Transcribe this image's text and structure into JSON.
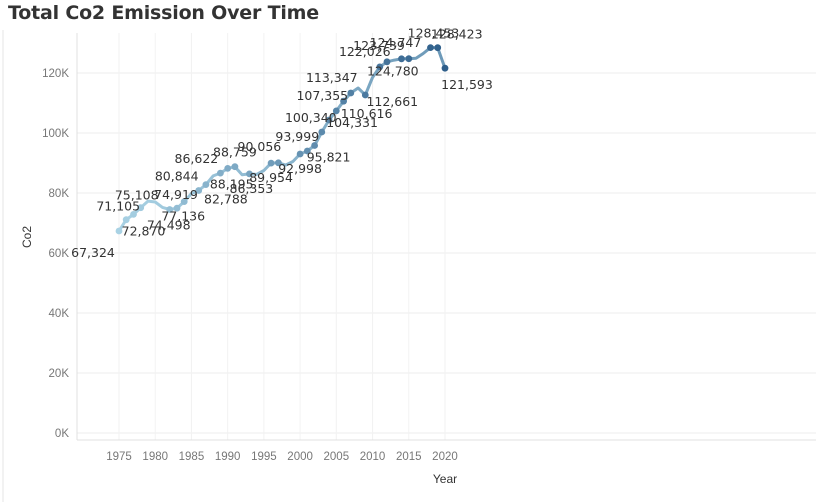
{
  "chart_data": {
    "type": "line",
    "title": "Total Co2 Emission Over Time",
    "xlabel": "Year",
    "ylabel": "Co2",
    "xlim": [
      1970,
      2023
    ],
    "ylim": [
      0,
      133000
    ],
    "xticks": [
      1975,
      1980,
      1985,
      1990,
      1995,
      2000,
      2005,
      2010,
      2015,
      2020
    ],
    "yticks": [
      0,
      20000,
      40000,
      60000,
      80000,
      100000,
      120000
    ],
    "ytick_labels": [
      "0K",
      "20K",
      "40K",
      "60K",
      "80K",
      "100K",
      "120K"
    ],
    "grid": true,
    "color_range": [
      "#a9d2e4",
      "#2e5e8a"
    ],
    "series": [
      {
        "points": [
          {
            "x": 1975,
            "y": 67324,
            "label": "67,324",
            "marker": true
          },
          {
            "x": 1976,
            "y": 71105,
            "label": "71,105",
            "marker": true
          },
          {
            "x": 1977,
            "y": 72870,
            "label": "72,870",
            "marker": true
          },
          {
            "x": 1978,
            "y": 75108,
            "label": "75,108",
            "marker": true
          },
          {
            "x": 1979,
            "y": 77300
          },
          {
            "x": 1980,
            "y": 77000
          },
          {
            "x": 1981,
            "y": 75200
          },
          {
            "x": 1982,
            "y": 74498,
            "label": "74,498",
            "marker": true
          },
          {
            "x": 1983,
            "y": 74919,
            "label": "74,919",
            "marker": true
          },
          {
            "x": 1984,
            "y": 77136,
            "label": "77,136",
            "marker": true
          },
          {
            "x": 1985,
            "y": 79800
          },
          {
            "x": 1986,
            "y": 80844,
            "label": "80,844",
            "marker": true
          },
          {
            "x": 1987,
            "y": 82788,
            "label": "82,788",
            "marker": true
          },
          {
            "x": 1988,
            "y": 85700
          },
          {
            "x": 1989,
            "y": 86622,
            "label": "86,622",
            "marker": true
          },
          {
            "x": 1990,
            "y": 88195,
            "label": "88,195",
            "marker": true
          },
          {
            "x": 1991,
            "y": 88759,
            "label": "88,759",
            "marker": true
          },
          {
            "x": 1992,
            "y": 86100
          },
          {
            "x": 1993,
            "y": 86353,
            "label": "86,353",
            "marker": true
          },
          {
            "x": 1994,
            "y": 86200
          },
          {
            "x": 1995,
            "y": 87500
          },
          {
            "x": 1996,
            "y": 89954,
            "label": "89,954",
            "marker": true
          },
          {
            "x": 1997,
            "y": 90056,
            "label": "90,056",
            "marker": true
          },
          {
            "x": 1998,
            "y": 89300
          },
          {
            "x": 1999,
            "y": 90500
          },
          {
            "x": 2000,
            "y": 92998,
            "label": "92,998",
            "marker": true
          },
          {
            "x": 2001,
            "y": 93999,
            "label": "93,999",
            "marker": true
          },
          {
            "x": 2002,
            "y": 95821,
            "label": "95,821",
            "marker": true
          },
          {
            "x": 2003,
            "y": 100340,
            "label": "100,340",
            "marker": true
          },
          {
            "x": 2004,
            "y": 104331,
            "label": "104,331",
            "marker": true
          },
          {
            "x": 2005,
            "y": 107355,
            "label": "107,355",
            "marker": true
          },
          {
            "x": 2006,
            "y": 110616,
            "label": "110,616",
            "marker": true
          },
          {
            "x": 2007,
            "y": 113347,
            "label": "113,347",
            "marker": true
          },
          {
            "x": 2008,
            "y": 115000
          },
          {
            "x": 2009,
            "y": 112661,
            "label": "112,661",
            "marker": true
          },
          {
            "x": 2010,
            "y": 118500
          },
          {
            "x": 2011,
            "y": 122026,
            "label": "122,026",
            "marker": true
          },
          {
            "x": 2012,
            "y": 123739,
            "label": "123,739",
            "marker": true
          },
          {
            "x": 2013,
            "y": 124300
          },
          {
            "x": 2014,
            "y": 124747,
            "label": "124,747",
            "marker": true
          },
          {
            "x": 2015,
            "y": 124780,
            "label": "124,780",
            "marker": true
          },
          {
            "x": 2016,
            "y": 124900
          },
          {
            "x": 2017,
            "y": 126500
          },
          {
            "x": 2018,
            "y": 128453,
            "label": "128,453",
            "marker": true
          },
          {
            "x": 2019,
            "y": 128423,
            "label": "128,423",
            "marker": true
          },
          {
            "x": 2020,
            "y": 121593,
            "label": "121,593",
            "marker": true
          }
        ]
      }
    ]
  }
}
